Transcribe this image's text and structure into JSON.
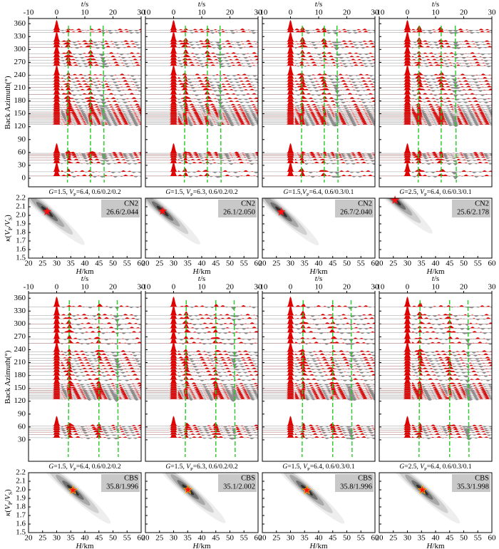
{
  "chart_data": {
    "type": "receiver-function-hk",
    "t_label": [
      {
        "text": "t",
        "italic": true
      },
      {
        "text": "/s"
      }
    ],
    "baz_label": [
      {
        "text": "Back Azimuth(°)"
      }
    ],
    "kappa_label": [
      {
        "text": "κ",
        "italic": true
      },
      {
        "text": "("
      },
      {
        "text": "V",
        "italic": true
      },
      {
        "text": "P",
        "sub": true
      },
      {
        "text": "/"
      },
      {
        "text": "V",
        "italic": true
      },
      {
        "text": "S",
        "sub": true
      },
      {
        "text": ")"
      }
    ],
    "H_label": [
      {
        "text": "H",
        "italic": true
      },
      {
        "text": "/km"
      }
    ],
    "tlim": [
      -10,
      30
    ],
    "tticks": [
      -10,
      0,
      10,
      20,
      30
    ],
    "hlim": [
      20,
      60
    ],
    "hticks": [
      20,
      25,
      30,
      35,
      40,
      45,
      50,
      55,
      60
    ],
    "klim": [
      1.5,
      2.2
    ],
    "kticks": [
      1.5,
      1.6,
      1.7,
      1.8,
      1.9,
      {
        "value": 2,
        "label": "2.0"
      },
      2.1,
      2.2
    ],
    "bazlim": [
      -20,
      372
    ],
    "groups": [
      {
        "station": "CN2",
        "bazticks": [
          0,
          30,
          60,
          90,
          120,
          150,
          180,
          210,
          240,
          270,
          300,
          330,
          360
        ],
        "back_azimuths": [
          5,
          15,
          35,
          42,
          48,
          52,
          55,
          58,
          125,
          128,
          131,
          134,
          137,
          140,
          143,
          146,
          149,
          152,
          156,
          160,
          165,
          170,
          178,
          185,
          195,
          205,
          212,
          218,
          225,
          232,
          240,
          262,
          268,
          275,
          282,
          290,
          305,
          312,
          318,
          340,
          345
        ],
        "panels": [
          {
            "caption": [
              {
                "text": "G",
                "italic": true
              },
              {
                "text": "=1.5, "
              },
              {
                "text": "V",
                "italic": true
              },
              {
                "text": "P",
                "sub": true
              },
              {
                "text": "=6.4, 0.6/0.2/0.2"
              }
            ],
            "phase_times": [
              4.2,
              12,
              16.5
            ],
            "H": 26.6,
            "kappa": 2.044,
            "result_label": "26.6/2.044"
          },
          {
            "caption": [
              {
                "text": "G",
                "italic": true
              },
              {
                "text": "=1.5, "
              },
              {
                "text": "V",
                "italic": true
              },
              {
                "text": "P",
                "sub": true
              },
              {
                "text": "=6.3, 0.6/0.2/0.2"
              }
            ],
            "phase_times": [
              4.2,
              12,
              16.5
            ],
            "H": 26.1,
            "kappa": 2.05,
            "result_label": "26.1/2.050"
          },
          {
            "caption": [
              {
                "text": "G",
                "italic": true
              },
              {
                "text": "=1.5,"
              },
              {
                "text": "V",
                "italic": true
              },
              {
                "text": "P",
                "sub": true
              },
              {
                "text": "=6.4, 0.6/0.3/0.1"
              }
            ],
            "phase_times": [
              4.2,
              12,
              16.5
            ],
            "H": 26.7,
            "kappa": 2.04,
            "result_label": "26.7/2.040"
          },
          {
            "caption": [
              {
                "text": "G",
                "italic": true
              },
              {
                "text": "=2.5, "
              },
              {
                "text": "V",
                "italic": true
              },
              {
                "text": "P",
                "sub": true
              },
              {
                "text": "=6.4, 0.6/0.3/0.1"
              }
            ],
            "phase_times": [
              4.2,
              12,
              17
            ],
            "H": 25.6,
            "kappa": 2.178,
            "result_label": "25.6/2.178"
          }
        ]
      },
      {
        "station": "CBS",
        "bazticks": [
          30,
          60,
          90,
          120,
          150,
          180,
          210,
          240,
          270,
          300,
          330,
          360
        ],
        "back_azimuths": [
          35,
          42,
          48,
          53,
          57,
          62,
          125,
          128,
          131,
          134,
          137,
          140,
          143,
          146,
          150,
          155,
          160,
          170,
          180,
          188,
          195,
          202,
          208,
          215,
          220,
          228,
          235,
          255,
          265,
          280,
          290,
          300,
          312,
          320,
          340
        ],
        "panels": [
          {
            "caption": [
              {
                "text": "G",
                "italic": true
              },
              {
                "text": "=1.5, "
              },
              {
                "text": "V",
                "italic": true
              },
              {
                "text": "P",
                "sub": true
              },
              {
                "text": "=6.4, 0.6/0.2/0.2"
              }
            ],
            "phase_times": [
              4.5,
              15,
              21.5
            ],
            "H": 35.8,
            "kappa": 1.996,
            "result_label": "35.8/1.996"
          },
          {
            "caption": [
              {
                "text": "G",
                "italic": true
              },
              {
                "text": "=1.5, "
              },
              {
                "text": "V",
                "italic": true
              },
              {
                "text": "P",
                "sub": true
              },
              {
                "text": "=6.3, 0.6/0.2/0.2"
              }
            ],
            "phase_times": [
              4.5,
              15,
              21.5
            ],
            "H": 35.1,
            "kappa": 2.002,
            "result_label": "35.1/2.002"
          },
          {
            "caption": [
              {
                "text": "G",
                "italic": true
              },
              {
                "text": "=1.5, "
              },
              {
                "text": "V",
                "italic": true
              },
              {
                "text": "P",
                "sub": true
              },
              {
                "text": "=6.4, 0.6/0.3/0.1"
              }
            ],
            "phase_times": [
              4.5,
              15,
              21.5
            ],
            "H": 35.8,
            "kappa": 1.996,
            "result_label": "35.8/1.996"
          },
          {
            "caption": [
              {
                "text": "G",
                "italic": true
              },
              {
                "text": "=2.5, "
              },
              {
                "text": "V",
                "italic": true
              },
              {
                "text": "P",
                "sub": true
              },
              {
                "text": "=6.4, 0.6/0.3/0.1"
              }
            ],
            "phase_times": [
              4.5,
              15,
              21.5
            ],
            "H": 35.3,
            "kappa": 1.998,
            "result_label": "35.3/1.998"
          }
        ]
      }
    ]
  }
}
